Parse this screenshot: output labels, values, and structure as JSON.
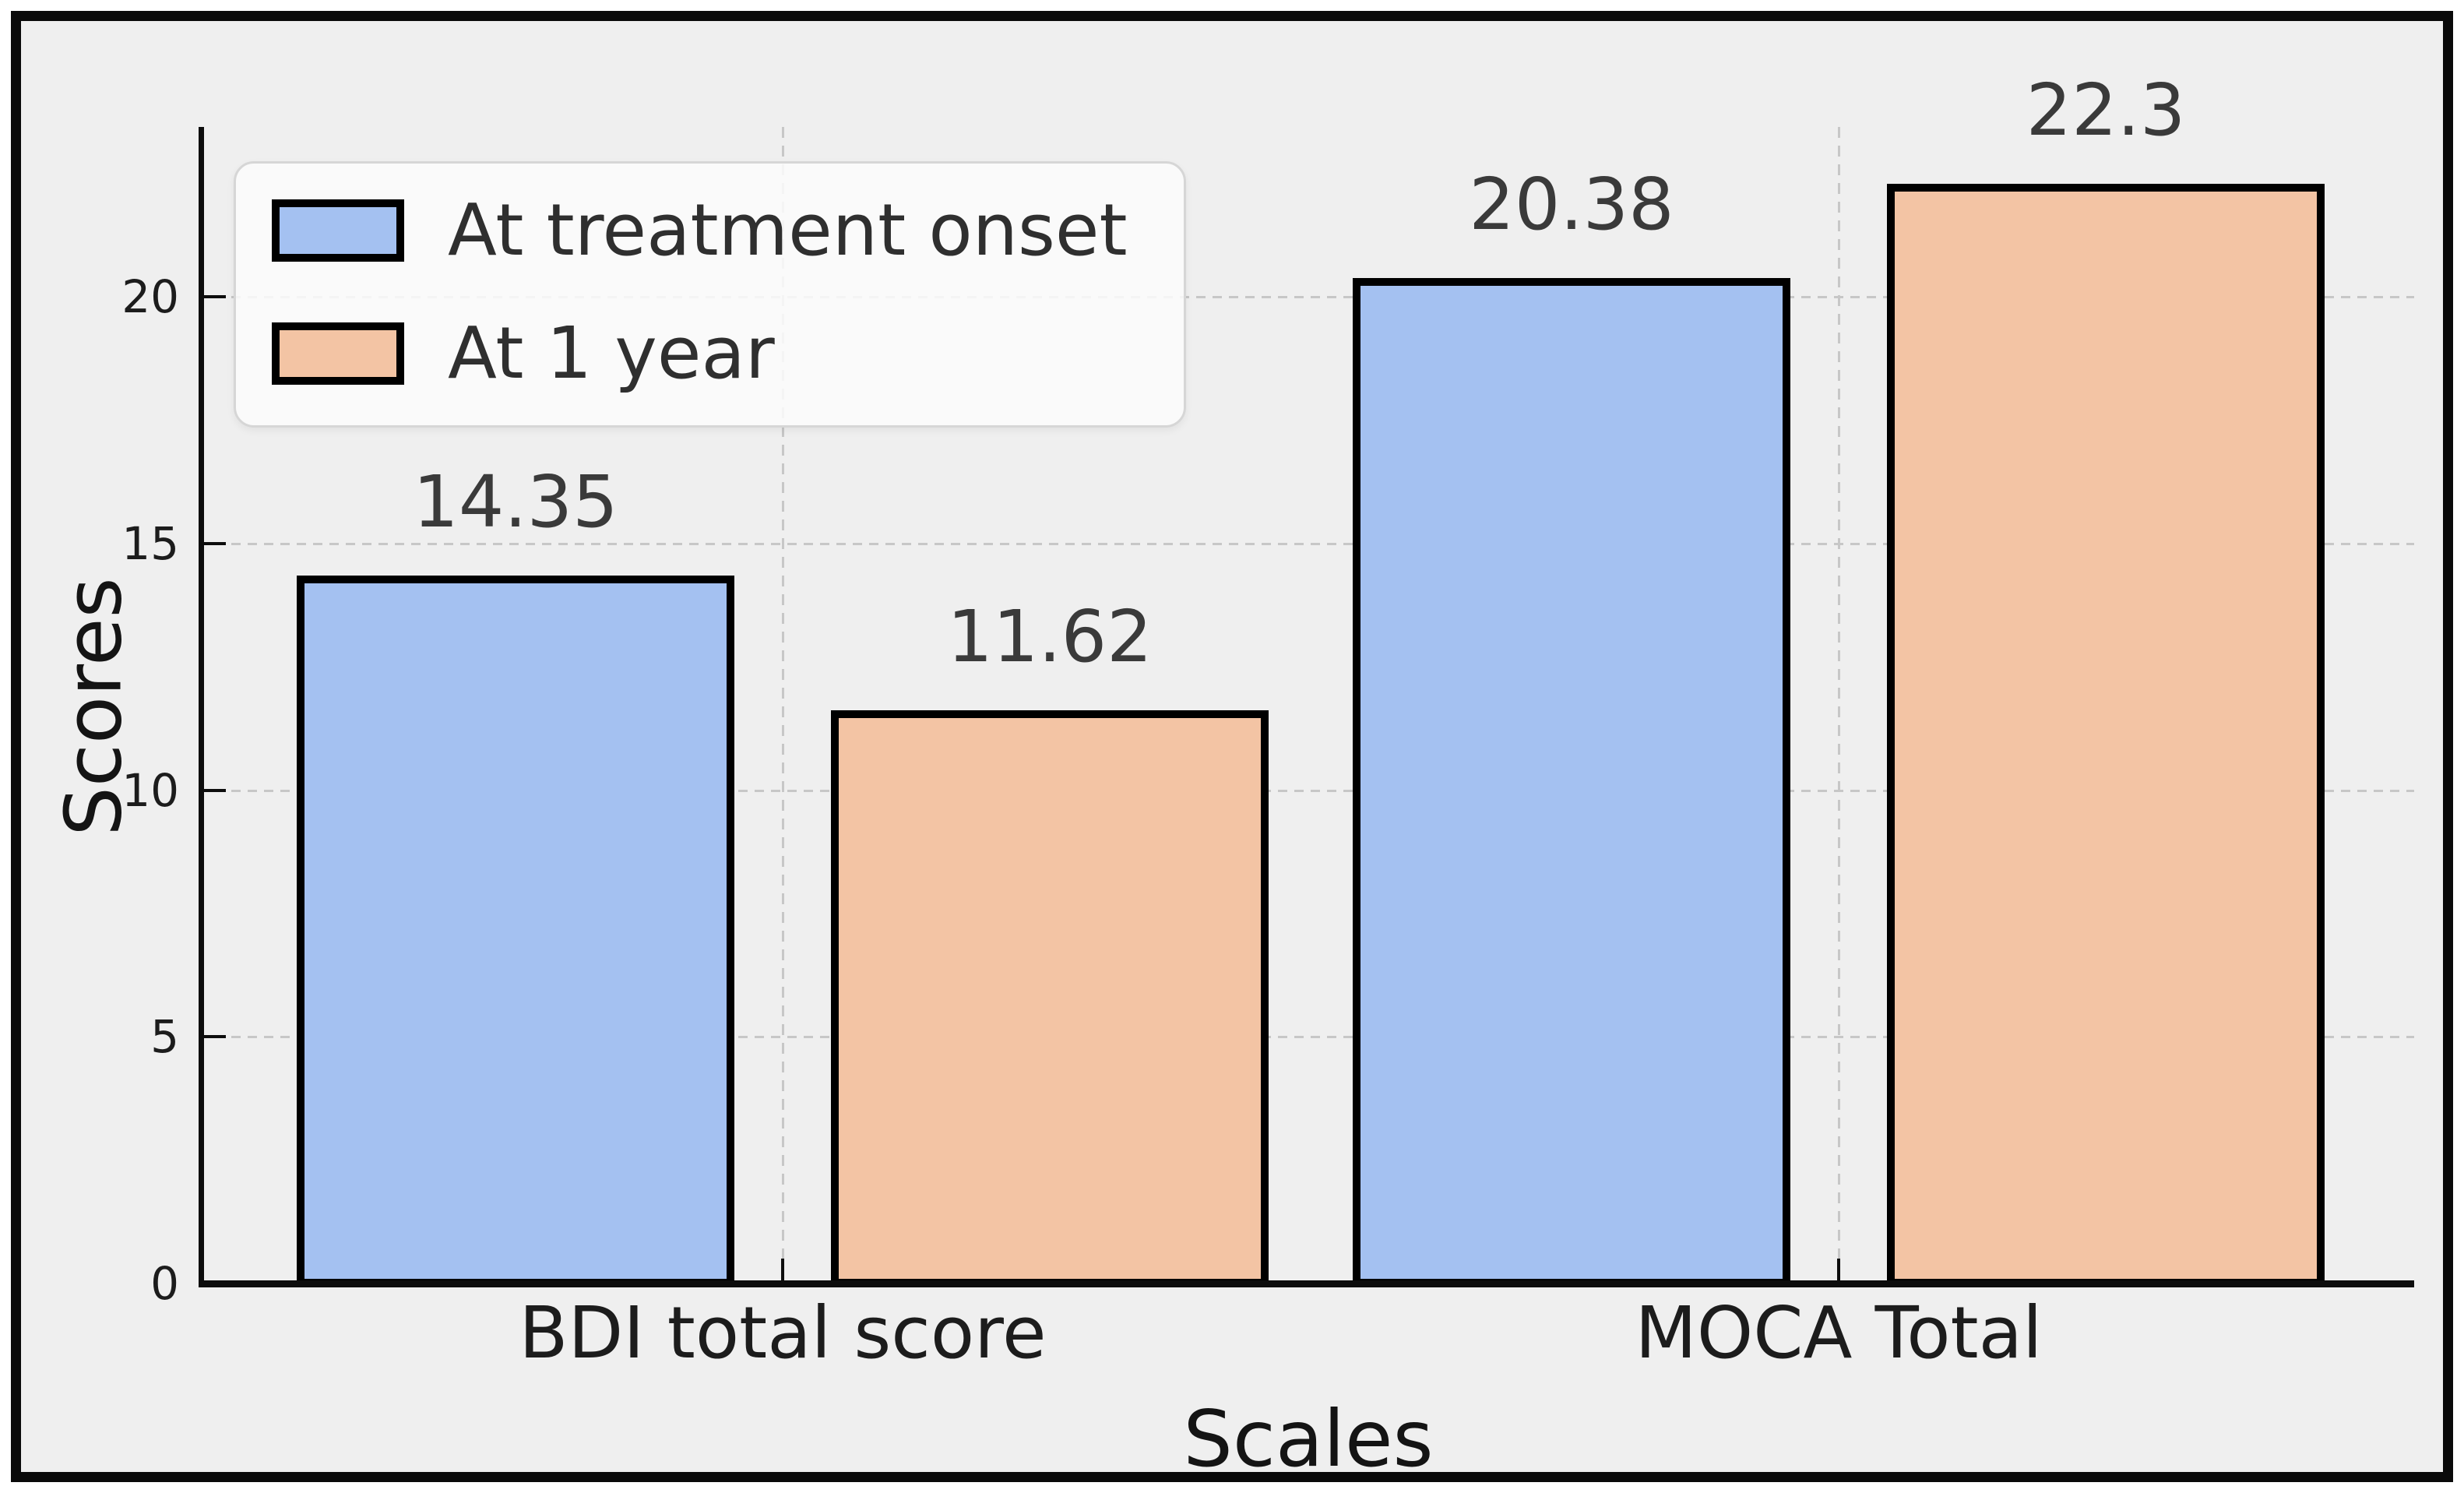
{
  "chart_data": {
    "type": "bar",
    "title": "",
    "categories": [
      "BDI total score",
      "MOCA Total"
    ],
    "series": [
      {
        "name": "At treatment onset",
        "color": "#a4c1f1",
        "values": [
          14.35,
          20.38
        ]
      },
      {
        "name": "At 1 year",
        "color": "#f3c4a4",
        "values": [
          11.62,
          22.3
        ]
      }
    ],
    "xlabel": "Scales",
    "ylabel": "Scores",
    "yticks": [
      0,
      5,
      10,
      15,
      20
    ],
    "ylim": [
      0,
      23.45
    ],
    "grid": "dashed",
    "grid_color": "#c7c7c7",
    "legend_position": "upper left",
    "bar_edge_color": "#000000",
    "plot_background": "#efefef",
    "figure_border_color": "#0a0a0a"
  }
}
